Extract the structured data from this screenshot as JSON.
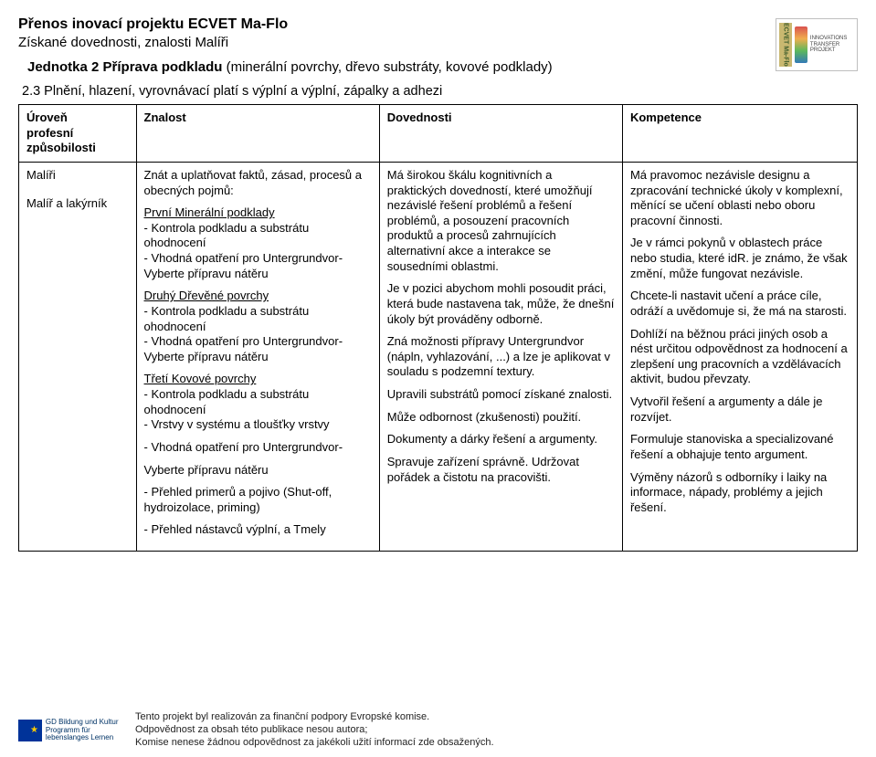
{
  "header": {
    "title1": "Přenos inovací projektu ECVET Ma-Flo",
    "title2": "Získané dovednosti, znalosti Malíři",
    "unit_bold": "Jednotka 2 Příprava podkladu",
    "unit_rest": " (minerální povrchy, dřevo substráty, kovové podklady)",
    "logo_side": "ECVET Ma-Flo",
    "logo_caption": "INNOVATIONS TRANSFER PROJEKT"
  },
  "subtitle": "2.3 Plnění, hlazení, vyrovnávací platí s výplní a výplní, zápalky a adhezi",
  "table": {
    "headers": {
      "col1a": "Úroveň",
      "col1b": "profesní",
      "col1c": "způsobilosti",
      "col2": "Znalost",
      "col3": "Dovednosti",
      "col4": "Kompetence"
    },
    "side": {
      "a": "Malíři",
      "b": "Malíř a lakýrník"
    },
    "znalost": {
      "intro": "Znát a uplatňovat faktů, zásad, procesů a obecných pojmů:",
      "g1_title": "První Minerální podklady",
      "g1_i1": "- Kontrola podkladu a substrátu ohodnocení",
      "g1_i2": "- Vhodná opatření pro Untergrundvor-",
      "g1_i3": "  Vyberte přípravu nátěru",
      "g2_title": "Druhý Dřevěné povrchy",
      "g2_i1": "- Kontrola podkladu a substrátu ohodnocení",
      "g2_i2": "- Vhodná opatření pro Untergrundvor-",
      "g2_i3": "  Vyberte přípravu nátěru",
      "g3_title": "Třetí Kovové povrchy",
      "g3_i1": "- Kontrola podkladu a substrátu ohodnocení",
      "g3_i2": "- Vrstvy v systému a tloušťky vrstvy",
      "g3_i3": "- Vhodná opatření pro Untergrundvor-",
      "g3_i4": "  Vyberte přípravu nátěru",
      "g3_i5": "- Přehled primerů a pojivo (Shut-off, hydroizolace, priming)",
      "g3_i6": "- Přehled nástavců výplní, a Tmely"
    },
    "dovednosti": {
      "p1": "Má širokou škálu kognitivních a praktických dovedností, které umožňují nezávislé řešení problémů a řešení problémů, a posouzení pracovních produktů a procesů zahrnujících alternativní akce a interakce se sousedními oblastmi.",
      "p2": "Je v pozici abychom mohli posoudit práci, která bude nastavena tak, může, že dnešní úkoly být prováděny odborně.",
      "p3": "Zná možnosti přípravy Untergrundvor (nápln, vyhlazování, ...) a lze je aplikovat v souladu s podzemní textury.",
      "p4": "Upravili substrátů pomocí získané znalosti.",
      "p5": "Může odbornost (zkušenosti) použití.",
      "p6": "Dokumenty a dárky řešení a argumenty.",
      "p7": "Spravuje zařízení správně. Udržovat pořádek a čistotu na pracovišti."
    },
    "kompetence": {
      "p1": "Má pravomoc nezávisle designu a zpracování technické úkoly v komplexní, měnící se učení oblasti nebo oboru pracovní činnosti.",
      "p2": "Je v rámci pokynů v oblastech práce nebo studia, které idR. je známo, že však změní, může fungovat nezávisle.",
      "p3": "Chcete-li nastavit učení a práce cíle, odráží a uvědomuje si, že má na starosti.",
      "p4": "Dohlíží na běžnou práci jiných osob a nést určitou odpovědnost za hodnocení a zlepšení ung pracovních a vzdělávacích aktivit, budou převzaty.",
      "p5": "Vytvořil řešení a argumenty a dále je rozvíjet.",
      "p6": "Formuluje stanoviska a specializované řešení a obhajuje tento argument.",
      "p7": "Výměny názorů s odborníky i laiky na informace, nápady, problémy a jejich řešení."
    }
  },
  "footer": {
    "logo_line1": "GD Bildung und Kultur",
    "logo_line2": "Programm für lebenslanges Lernen",
    "t1": "Tento projekt byl realizován za finanční podpory Evropské komise.",
    "t2": "Odpovědnost za obsah této publikace nesou autora;",
    "t3": "Komise nenese žádnou odpovědnost za jakékoli užití informací zde obsažených."
  },
  "colors": {
    "border": "#000000",
    "text": "#000000",
    "bg": "#ffffff"
  }
}
